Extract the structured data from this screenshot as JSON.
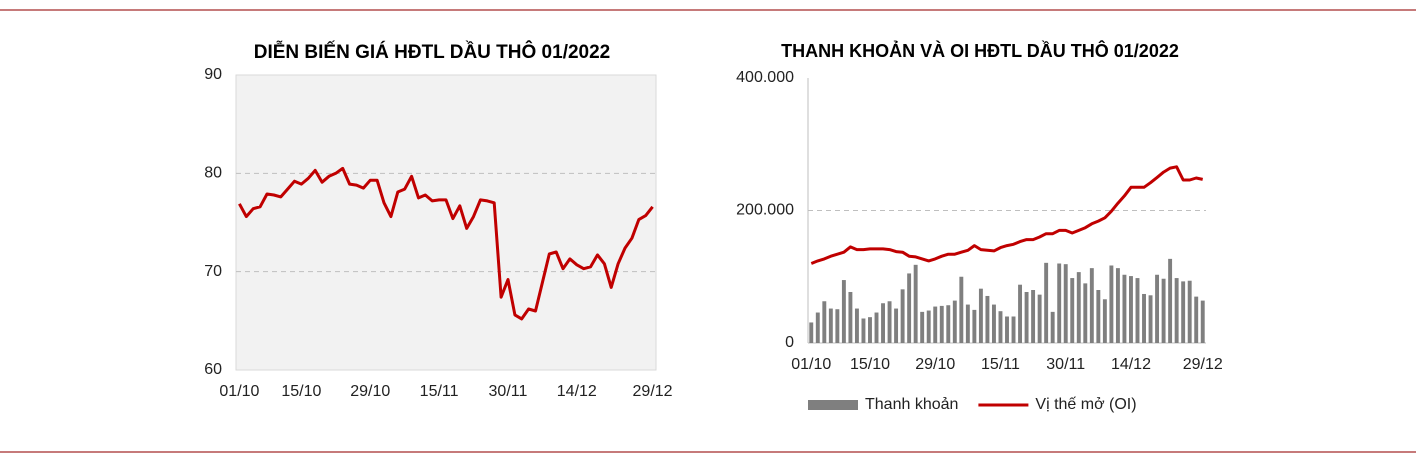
{
  "chart_data": [
    {
      "type": "line",
      "title": "DIỄN BIẾN GIÁ HĐTL DẦU THÔ 01/2022",
      "categories": [
        "01/10",
        null,
        null,
        null,
        null,
        null,
        null,
        null,
        null,
        "15/10",
        null,
        null,
        null,
        null,
        null,
        null,
        null,
        null,
        null,
        "29/10",
        null,
        null,
        null,
        null,
        null,
        null,
        null,
        null,
        null,
        "15/11",
        null,
        null,
        null,
        null,
        null,
        null,
        null,
        null,
        null,
        "30/11",
        null,
        null,
        null,
        null,
        null,
        null,
        null,
        null,
        null,
        "14/12",
        null,
        null,
        null,
        null,
        null,
        null,
        null,
        null,
        null,
        null,
        "29/12"
      ],
      "values": [
        76.9,
        75.6,
        76.4,
        76.6,
        77.9,
        77.8,
        77.6,
        78.4,
        79.2,
        78.9,
        79.5,
        80.3,
        79.1,
        79.7,
        80.0,
        80.5,
        78.9,
        78.8,
        78.5,
        79.3,
        79.3,
        77.0,
        75.6,
        78.1,
        78.4,
        79.7,
        77.5,
        77.8,
        77.2,
        77.3,
        77.3,
        75.4,
        76.7,
        74.4,
        75.6,
        77.3,
        77.2,
        77.0,
        67.4,
        69.2,
        65.6,
        65.2,
        66.2,
        66.0,
        68.9,
        71.8,
        72.0,
        70.3,
        71.3,
        70.7,
        70.3,
        70.5,
        71.7,
        70.8,
        68.4,
        70.8,
        72.4,
        73.4,
        75.3,
        75.7,
        76.6
      ],
      "color": "#c00000",
      "ylim": [
        60,
        90
      ],
      "yticks": [
        60,
        70,
        80,
        90
      ],
      "grid": true
    },
    {
      "type": "combo",
      "title": "THANH KHOẢN VÀ OI HĐTL DẦU THÔ 01/2022",
      "categories": [
        "01/10",
        null,
        null,
        null,
        null,
        null,
        null,
        null,
        null,
        "15/10",
        null,
        null,
        null,
        null,
        null,
        null,
        null,
        null,
        null,
        "29/10",
        null,
        null,
        null,
        null,
        null,
        null,
        null,
        null,
        null,
        "15/11",
        null,
        null,
        null,
        null,
        null,
        null,
        null,
        null,
        null,
        "30/11",
        null,
        null,
        null,
        null,
        null,
        null,
        null,
        null,
        null,
        "14/12",
        null,
        null,
        null,
        null,
        null,
        null,
        null,
        null,
        null,
        null,
        "29/12"
      ],
      "series": [
        {
          "name": "Thanh khoản",
          "type": "bar",
          "color": "#7f7f7f",
          "values": [
            31000,
            46000,
            63000,
            52000,
            51000,
            95000,
            77000,
            52000,
            37000,
            39000,
            46000,
            60000,
            63000,
            52000,
            81000,
            105000,
            118000,
            47000,
            49000,
            55000,
            56000,
            57000,
            64000,
            100000,
            58000,
            50000,
            82000,
            71000,
            58000,
            48000,
            40000,
            40000,
            88000,
            77000,
            80000,
            73000,
            121000,
            47000,
            120000,
            119000,
            98000,
            107000,
            90000,
            113000,
            80000,
            66000,
            117000,
            113000,
            103000,
            101000,
            98000,
            74000,
            72000,
            103000,
            97000,
            127000,
            98000,
            93000,
            94000,
            70000,
            64000
          ]
        },
        {
          "name": "Vị thế mở (OI)",
          "type": "line",
          "color": "#c00000",
          "values": [
            120000,
            124000,
            127000,
            131000,
            134000,
            137000,
            145000,
            141000,
            141000,
            142000,
            142000,
            142000,
            141000,
            138000,
            137000,
            131000,
            130000,
            127000,
            124000,
            127000,
            131000,
            134000,
            134000,
            137000,
            140000,
            147000,
            141000,
            140000,
            139000,
            144000,
            147000,
            149000,
            153000,
            156000,
            156000,
            160000,
            165000,
            165000,
            170000,
            170000,
            166000,
            170000,
            174000,
            180000,
            184000,
            189000,
            199000,
            211000,
            222000,
            235000,
            235000,
            235000,
            242000,
            250000,
            258000,
            264000,
            266000,
            246000,
            246000,
            249000,
            247000
          ]
        }
      ],
      "ylim": [
        0,
        400000
      ],
      "yticks": [
        {
          "value": 0,
          "label": "0"
        },
        {
          "value": 200000,
          "label": "200.000"
        },
        {
          "value": 400000,
          "label": "400.000"
        }
      ],
      "grid": true,
      "legend": "bottom"
    }
  ]
}
